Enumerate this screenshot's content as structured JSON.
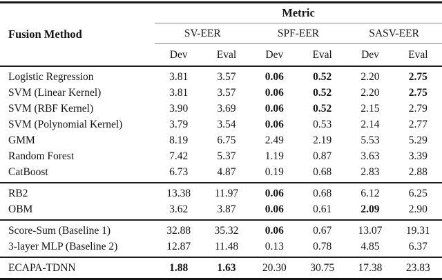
{
  "table": {
    "col1_header": "Fusion Method",
    "metric_header": "Metric",
    "groups": [
      "SV-EER",
      "SPF-EER",
      "SASV-EER"
    ],
    "subheaders": [
      "Dev",
      "Eval",
      "Dev",
      "Eval",
      "Dev",
      "Eval"
    ],
    "sections": [
      {
        "rows": [
          {
            "label": "Logistic Regression",
            "values": [
              "3.81",
              "3.57",
              "0.06",
              "0.52",
              "2.20",
              "2.75"
            ],
            "bold": [
              false,
              false,
              true,
              true,
              false,
              true
            ]
          },
          {
            "label": "SVM (Linear Kernel)",
            "values": [
              "3.81",
              "3.57",
              "0.06",
              "0.52",
              "2.20",
              "2.75"
            ],
            "bold": [
              false,
              false,
              true,
              true,
              false,
              true
            ]
          },
          {
            "label": "SVM (RBF Kernel)",
            "values": [
              "3.90",
              "3.69",
              "0.06",
              "0.52",
              "2.15",
              "2.79"
            ],
            "bold": [
              false,
              false,
              true,
              true,
              false,
              false
            ]
          },
          {
            "label": "SVM (Polynomial Kernel)",
            "values": [
              "3.79",
              "3.54",
              "0.06",
              "0.53",
              "2.14",
              "2.77"
            ],
            "bold": [
              false,
              false,
              true,
              false,
              false,
              false
            ]
          },
          {
            "label": "GMM",
            "values": [
              "8.19",
              "6.75",
              "2.49",
              "2.19",
              "5.53",
              "5.29"
            ],
            "bold": [
              false,
              false,
              false,
              false,
              false,
              false
            ]
          },
          {
            "label": "Random Forest",
            "values": [
              "7.42",
              "5.37",
              "1.19",
              "0.87",
              "3.63",
              "3.39"
            ],
            "bold": [
              false,
              false,
              false,
              false,
              false,
              false
            ]
          },
          {
            "label": "CatBoost",
            "values": [
              "6.73",
              "4.87",
              "0.19",
              "0.68",
              "2.83",
              "2.88"
            ],
            "bold": [
              false,
              false,
              false,
              false,
              false,
              false
            ]
          }
        ]
      },
      {
        "rows": [
          {
            "label": "RB2",
            "values": [
              "13.38",
              "11.97",
              "0.06",
              "0.68",
              "6.12",
              "6.25"
            ],
            "bold": [
              false,
              false,
              true,
              false,
              false,
              false
            ]
          },
          {
            "label": "OBM",
            "values": [
              "3.62",
              "3.87",
              "0.06",
              "0.61",
              "2.09",
              "2.90"
            ],
            "bold": [
              false,
              false,
              true,
              false,
              true,
              false
            ]
          }
        ]
      },
      {
        "rows": [
          {
            "label": "Score-Sum (Baseline 1)",
            "values": [
              "32.88",
              "35.32",
              "0.06",
              "0.67",
              "13.07",
              "19.31"
            ],
            "bold": [
              false,
              false,
              true,
              false,
              false,
              false
            ]
          },
          {
            "label": "3-layer MLP (Baseline 2)",
            "values": [
              "12.87",
              "11.48",
              "0.13",
              "0.78",
              "4.85",
              "6.37"
            ],
            "bold": [
              false,
              false,
              false,
              false,
              false,
              false
            ]
          }
        ]
      },
      {
        "rows": [
          {
            "label": "ECAPA-TDNN",
            "values": [
              "1.88",
              "1.63",
              "20.30",
              "30.75",
              "17.38",
              "23.83"
            ],
            "bold": [
              true,
              true,
              false,
              false,
              false,
              false
            ]
          }
        ]
      }
    ]
  }
}
